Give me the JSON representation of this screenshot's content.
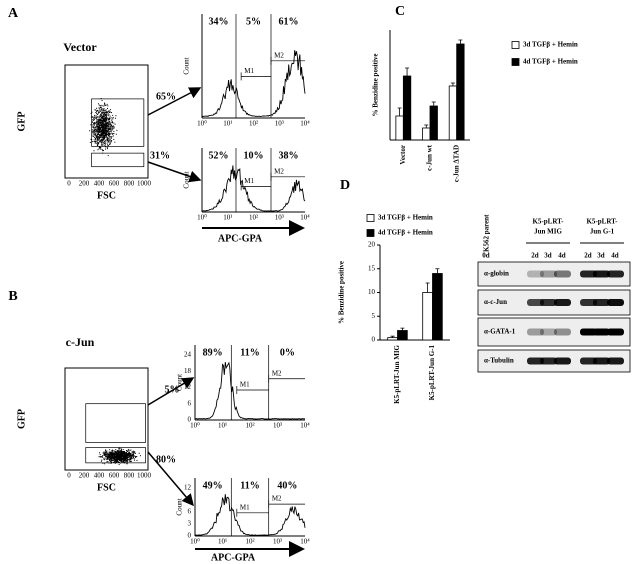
{
  "panels": [
    {
      "label": "A",
      "condition": "Vector",
      "dot_plot": {
        "y_label": "GFP",
        "x_label": "FSC",
        "x_tick_labels": [
          "0",
          "200",
          "400",
          "600",
          "800",
          "1000"
        ]
      },
      "gate_percents": [
        "65%",
        "31%"
      ],
      "histograms": [
        {
          "percents": [
            "34%",
            "5%",
            "61%"
          ],
          "y_label": "Count",
          "markers": [
            "M1",
            "M2"
          ]
        },
        {
          "percents": [
            "52%",
            "10%",
            "38%"
          ],
          "y_label": "Count",
          "markers": [
            "M1",
            "M2"
          ]
        }
      ],
      "x_label": "APC-GPA"
    },
    {
      "label": "B",
      "condition": "c-Jun",
      "dot_plot": {
        "y_label": "GFP",
        "x_label": "FSC",
        "x_tick_labels": [
          "0",
          "200",
          "400",
          "600",
          "800",
          "1000"
        ]
      },
      "gate_percents": [
        "5%",
        "80%"
      ],
      "histograms": [
        {
          "percents": [
            "89%",
            "11%",
            "0%"
          ],
          "y_label": "Count",
          "markers": [
            "M1",
            "M2"
          ],
          "y_tick_labels": [
            "0",
            "6",
            "12",
            "18",
            "24"
          ]
        },
        {
          "percents": [
            "49%",
            "11%",
            "40%"
          ],
          "y_label": "Count",
          "markers": [
            "M1",
            "M2"
          ],
          "y_tick_labels": [
            "0",
            "3",
            "6",
            "9",
            "12"
          ]
        }
      ],
      "x_label": "APC-GPA"
    }
  ],
  "hist_x_tick_labels": [
    "10⁰",
    "10¹",
    "10²",
    "10³",
    "10⁴"
  ],
  "chart_labels": [
    "C",
    "D"
  ],
  "chart_data": [
    {
      "type": "bar",
      "y_label": "% Benzidine positive",
      "categories": [
        "Vector",
        "c-Jun wt",
        "c-Jun ΔTAD"
      ],
      "series": [
        {
          "name": "3d TGFβ + Hemin",
          "color": "#ffffff",
          "values": [
            12,
            6,
            27
          ],
          "errors": [
            4,
            1.5,
            1.5
          ]
        },
        {
          "name": "4d TGFβ + Hemin",
          "color": "#000000",
          "values": [
            32,
            17,
            48
          ],
          "errors": [
            4,
            2,
            2
          ]
        }
      ],
      "ylim": [
        0,
        55
      ],
      "legend": "right"
    },
    {
      "type": "bar",
      "y_label": "% Benzidine positive",
      "categories": [
        "K5-pLRT-Jun MIG",
        "K5-pLRT-Jun G-1"
      ],
      "series": [
        {
          "name": "3d TGFβ + Hemin",
          "color": "#ffffff",
          "values": [
            0.5,
            10
          ],
          "errors": [
            0.3,
            2
          ]
        },
        {
          "name": "4d TGFβ + Hemin",
          "color": "#000000",
          "values": [
            2,
            14
          ],
          "errors": [
            0.5,
            1
          ]
        }
      ],
      "ylim": [
        0,
        20
      ],
      "yticks": [
        0,
        5,
        10,
        15,
        20
      ],
      "legend": "top"
    }
  ],
  "blot": {
    "groups": [
      [
        "K562 parent"
      ],
      [
        "K5-pLRT-",
        "Jun MIG"
      ],
      [
        "K5-pLRT-",
        "Jun G-1"
      ]
    ],
    "lanes": [
      "0d",
      "2d",
      "3d",
      "4d",
      "2d",
      "3d",
      "4d"
    ],
    "rows": [
      "α-globin",
      "α-c-Jun",
      "α-GATA-1",
      "α-Tubulin"
    ]
  }
}
